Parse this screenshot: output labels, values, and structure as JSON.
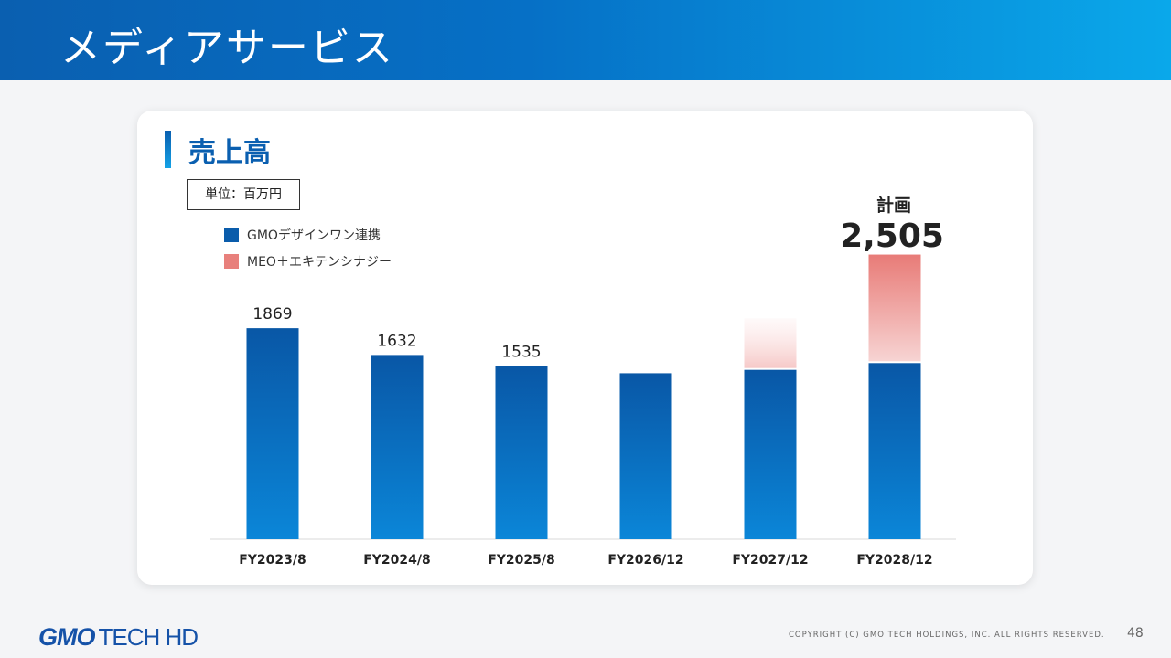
{
  "header": {
    "title": "メディアサービス"
  },
  "card": {
    "title": "売上高",
    "unit": "単位：百万円"
  },
  "legend": [
    {
      "label": "GMOデザインワン連携",
      "color": "#0a5cab"
    },
    {
      "label": "MEO＋エキテンシナジー",
      "color": "#e8807c"
    }
  ],
  "plan": {
    "label": "計画",
    "value": "2,505"
  },
  "chart_data": {
    "type": "bar",
    "stacked": true,
    "title": "売上高",
    "categories": [
      "FY2023/8",
      "FY2024/8",
      "FY2025/8",
      "FY2026/12",
      "FY2027/12",
      "FY2028/12"
    ],
    "series": [
      {
        "name": "GMOデザインワン連携",
        "values": [
          1869,
          1632,
          1535,
          1470,
          1500,
          1560
        ]
      },
      {
        "name": "MEO＋エキテンシナジー",
        "values": [
          0,
          0,
          0,
          0,
          440,
          945
        ]
      }
    ],
    "data_labels": [
      "1869",
      "1632",
      "1535",
      "",
      "",
      ""
    ],
    "ylim": [
      0,
      2550
    ],
    "colors": {
      "primary": "#0a5cab",
      "accent": "#e8807c"
    }
  },
  "footer": {
    "logo_gmo": "GMO",
    "logo_rest": "TECH HD",
    "copyright": "COPYRIGHT (C)   GMO TECH HOLDINGS, INC. ALL RIGHTS RESERVED.",
    "page_number": "48"
  }
}
